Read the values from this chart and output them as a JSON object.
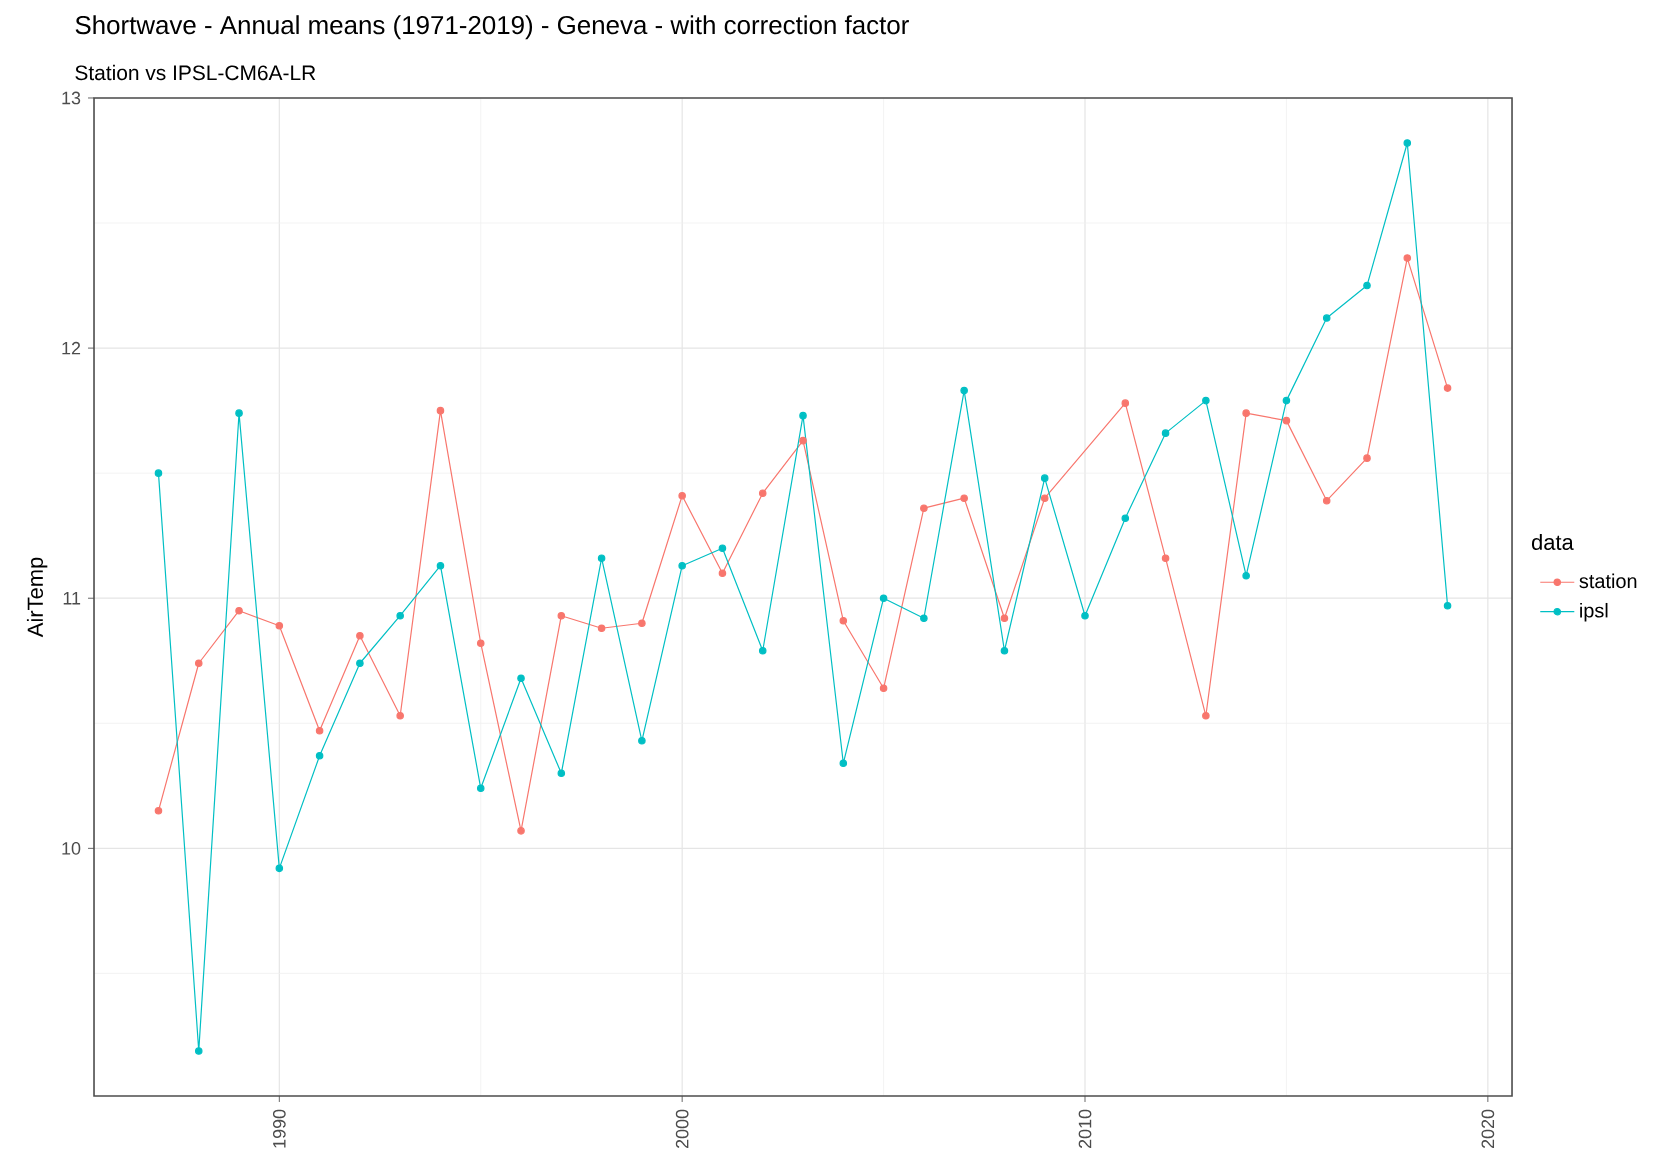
{
  "chart_data": {
    "type": "line",
    "title": "Shortwave - Annual means (1971-2019) - Geneva - with correction factor",
    "subtitle": "Station vs IPSL-CM6A-LR",
    "ylabel": "AirTemp",
    "legend_title": "data",
    "x": [
      1987,
      1988,
      1989,
      1990,
      1991,
      1992,
      1993,
      1994,
      1995,
      1996,
      1997,
      1998,
      1999,
      2000,
      2001,
      2002,
      2003,
      2004,
      2005,
      2006,
      2007,
      2008,
      2009,
      2010,
      2011,
      2012,
      2013,
      2014,
      2015,
      2016,
      2017,
      2018,
      2019
    ],
    "series": [
      {
        "name": "station",
        "color": "#f8766d",
        "x": [
          1987,
          1988,
          1989,
          1990,
          1991,
          1992,
          1993,
          1994,
          1995,
          1996,
          1997,
          1998,
          1999,
          2000,
          2001,
          2002,
          2003,
          2004,
          2005,
          2006,
          2007,
          2008,
          2009,
          2011,
          2012,
          2013,
          2014,
          2015,
          2016,
          2017,
          2018,
          2019
        ],
        "values": [
          10.15,
          10.74,
          10.95,
          10.89,
          10.47,
          10.85,
          10.53,
          11.75,
          10.82,
          10.07,
          10.93,
          10.88,
          10.9,
          11.41,
          11.1,
          11.42,
          11.63,
          10.91,
          10.64,
          11.36,
          11.4,
          10.92,
          11.4,
          11.78,
          11.16,
          10.53,
          11.74,
          11.71,
          11.39,
          11.56,
          12.36,
          11.84
        ]
      },
      {
        "name": "ipsl",
        "color": "#00bfc4",
        "values": [
          11.5,
          9.19,
          11.74,
          9.92,
          10.37,
          10.74,
          10.93,
          11.13,
          10.24,
          10.68,
          10.3,
          11.16,
          10.43,
          11.13,
          11.2,
          10.79,
          11.73,
          10.34,
          11.0,
          10.92,
          11.83,
          10.79,
          11.48,
          10.93,
          11.32,
          11.66,
          11.79,
          11.09,
          11.79,
          12.12,
          12.25,
          12.82,
          10.97
        ]
      }
    ],
    "xlim": [
      1985.4,
      2020.6
    ],
    "ylim": [
      9.01,
      13.0
    ],
    "xticks": [
      1990,
      2000,
      2010,
      2020
    ],
    "yticks": [
      10,
      11,
      12,
      13
    ],
    "grid": true,
    "legend": "right",
    "marker": "circle",
    "line_style": "solid"
  }
}
